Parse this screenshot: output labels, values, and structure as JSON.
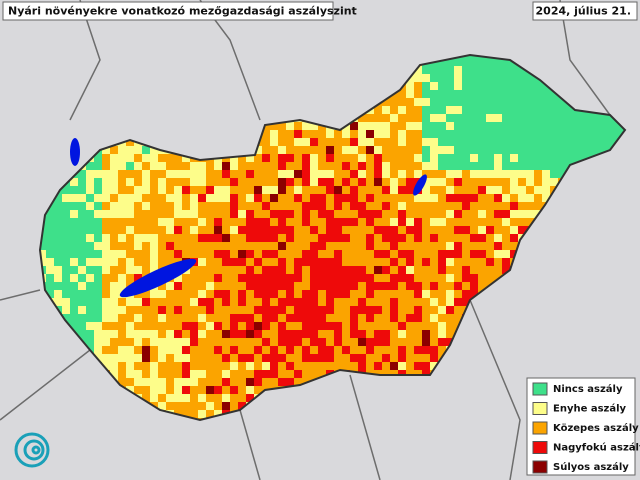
{
  "header": {
    "title": "Nyári növényekre vonatkozó mezőgazdasági aszályszint",
    "date": "2024, július 21."
  },
  "legend": {
    "items": [
      {
        "label": "Nincs aszály",
        "color": "#3ee08a"
      },
      {
        "label": "Enyhe aszály",
        "color": "#fdfd8a"
      },
      {
        "label": "Közepes aszály",
        "color": "#fba400"
      },
      {
        "label": "Nagyfokú aszály",
        "color": "#ee0a0a"
      },
      {
        "label": "Súlyos aszály",
        "color": "#8b0000"
      }
    ]
  }
}
